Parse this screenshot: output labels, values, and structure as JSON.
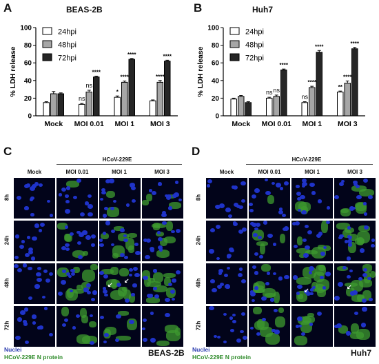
{
  "panels": {
    "a": "A",
    "b": "B",
    "c": "C",
    "d": "D"
  },
  "chart_data": [
    {
      "type": "bar",
      "title": "BEAS-2B",
      "ylabel": "% LDH release",
      "ylim": [
        0,
        100
      ],
      "yticks": [
        "0",
        "20",
        "40",
        "60",
        "80",
        "100"
      ],
      "categories": [
        "Mock",
        "MOI 0.01",
        "MOI 1",
        "MOI 3"
      ],
      "legend_position": "top-left",
      "series": [
        {
          "name": "24hpi",
          "color": "#ffffff",
          "values": [
            15,
            13,
            21,
            17
          ],
          "errors": [
            1,
            1,
            1.5,
            1
          ]
        },
        {
          "name": "48hpi",
          "color": "#a6a6a6",
          "values": [
            25,
            27,
            38,
            38
          ],
          "errors": [
            2.5,
            2,
            1.5,
            2
          ]
        },
        {
          "name": "72hpi",
          "color": "#262626",
          "values": [
            25,
            44,
            64,
            62
          ],
          "errors": [
            1,
            1,
            1,
            1
          ]
        }
      ],
      "annotations": [
        [
          "",
          "",
          ""
        ],
        [
          "ns",
          "ns",
          "****"
        ],
        [
          "*",
          "****",
          "****"
        ],
        [
          "",
          "****",
          "****"
        ]
      ]
    },
    {
      "type": "bar",
      "title": "Huh7",
      "ylabel": "% LDH release",
      "ylim": [
        0,
        100
      ],
      "yticks": [
        "0",
        "20",
        "40",
        "60",
        "80",
        "100"
      ],
      "categories": [
        "Mock",
        "MOI 0.01",
        "MOI 1",
        "MOI 3"
      ],
      "legend_position": "top-left",
      "series": [
        {
          "name": "24hpi",
          "color": "#ffffff",
          "values": [
            19,
            20,
            15,
            27
          ],
          "errors": [
            1,
            1,
            1,
            1
          ]
        },
        {
          "name": "48hpi",
          "color": "#a6a6a6",
          "values": [
            22,
            22,
            32,
            37
          ],
          "errors": [
            1,
            1.5,
            1.5,
            2.5
          ]
        },
        {
          "name": "72hpi",
          "color": "#262626",
          "values": [
            15,
            52,
            72,
            76
          ],
          "errors": [
            1,
            1,
            2,
            1.5
          ]
        }
      ],
      "annotations": [
        [
          "",
          "",
          ""
        ],
        [
          "ns",
          "ns",
          "****"
        ],
        [
          "ns",
          "****",
          "****"
        ],
        [
          "**",
          "****",
          "****"
        ]
      ]
    }
  ],
  "micrographs": [
    {
      "group_label": "HCoV-229E",
      "columns": [
        "Mock",
        "MOI 0.01",
        "MOI 1",
        "MOI 3"
      ],
      "rows": [
        "8h",
        "24h",
        "48h",
        "72h"
      ],
      "legend_nuclei": "Nuclei",
      "legend_protein": "HCoV-229E N protein",
      "cell_line": "BEAS-2B",
      "nuclei_color": "#1f33c9",
      "protein_color": "#3d9a2f"
    },
    {
      "group_label": "HCoV-229E",
      "columns": [
        "Mock",
        "MOI 0.01",
        "MOI 1",
        "MOI 3"
      ],
      "rows": [
        "8h",
        "24h",
        "48h",
        "72h"
      ],
      "legend_nuclei": "Nuclei",
      "legend_protein": "HCoV-229E N protein",
      "cell_line": "Huh7",
      "nuclei_color": "#1f33c9",
      "protein_color": "#3d9a2f"
    }
  ]
}
